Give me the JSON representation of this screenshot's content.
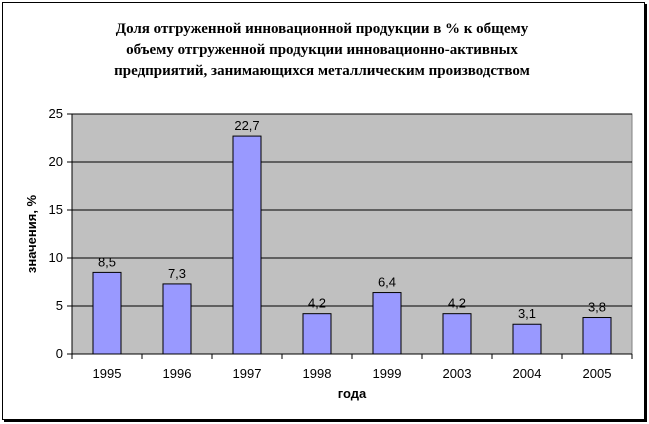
{
  "chart_data": {
    "type": "bar",
    "title_lines": [
      "Доля отгруженной инновационной продукции в % к общему",
      "объему отгруженной продукции инновационно-активных",
      "предприятий, занимающихся металлическим производством"
    ],
    "xlabel": "года",
    "ylabel": "значения, %",
    "categories": [
      "1995",
      "1996",
      "1997",
      "1998",
      "1999",
      "2003",
      "2004",
      "2005"
    ],
    "values": [
      8.5,
      7.3,
      22.7,
      4.2,
      6.4,
      4.2,
      3.1,
      3.8
    ],
    "value_labels": [
      "8,5",
      "7,3",
      "22,7",
      "4,2",
      "6,4",
      "4,2",
      "3,1",
      "3,8"
    ],
    "ylim": [
      0,
      25
    ],
    "yticks": [
      0,
      5,
      10,
      15,
      20,
      25
    ],
    "grid": true,
    "legend": "none",
    "colors": {
      "plot_background": "#c0c0c0",
      "bar_fill": "#9999ff",
      "bar_stroke": "#000000",
      "gridline": "#000000"
    }
  }
}
